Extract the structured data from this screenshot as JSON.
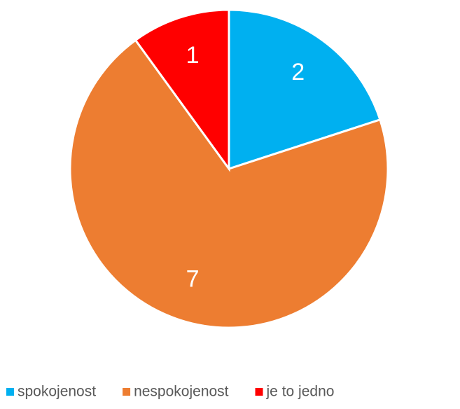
{
  "chart_data": {
    "type": "pie",
    "categories": [
      "spokojenost",
      "nespokojenost",
      "je to jedno"
    ],
    "values": [
      2,
      7,
      1
    ],
    "colors": [
      "#00b0f0",
      "#ed7d31",
      "#ff0000"
    ],
    "legend": "bottom"
  }
}
